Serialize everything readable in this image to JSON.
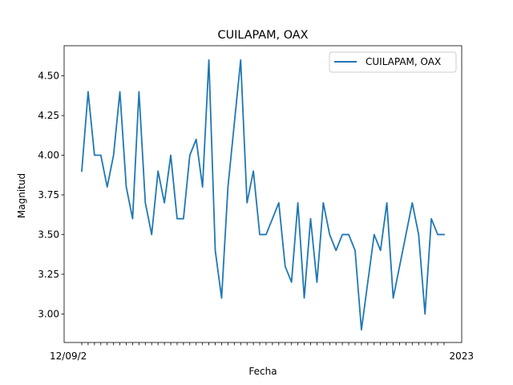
{
  "chart_data": {
    "type": "line",
    "title": "CUILAPAM, OAX",
    "xlabel": "Fecha",
    "ylabel": "Magnitud",
    "x_tick_first": "12/09/2",
    "x_tick_last": "2023",
    "ylim": [
      2.82,
      4.69
    ],
    "yticks": [
      "3.00",
      "3.25",
      "3.50",
      "3.75",
      "4.00",
      "4.25",
      "4.50"
    ],
    "grid": false,
    "legend_position": "top-right",
    "series": [
      {
        "name": "CUILAPAM, OAX",
        "color": "#1f77b4",
        "values": [
          3.9,
          4.4,
          4.0,
          4.0,
          3.8,
          4.0,
          4.4,
          3.8,
          3.6,
          4.4,
          3.7,
          3.5,
          3.9,
          3.7,
          4.0,
          3.6,
          3.6,
          4.0,
          4.1,
          3.8,
          4.6,
          3.4,
          3.1,
          3.8,
          4.2,
          4.6,
          3.7,
          3.9,
          3.5,
          3.5,
          3.6,
          3.7,
          3.3,
          3.2,
          3.7,
          3.1,
          3.6,
          3.2,
          3.7,
          3.5,
          3.4,
          3.5,
          3.5,
          3.4,
          2.9,
          3.2,
          3.5,
          3.4,
          3.7,
          3.1,
          3.3,
          3.5,
          3.7,
          3.5,
          3.0,
          3.6,
          3.5,
          3.5
        ]
      }
    ]
  }
}
